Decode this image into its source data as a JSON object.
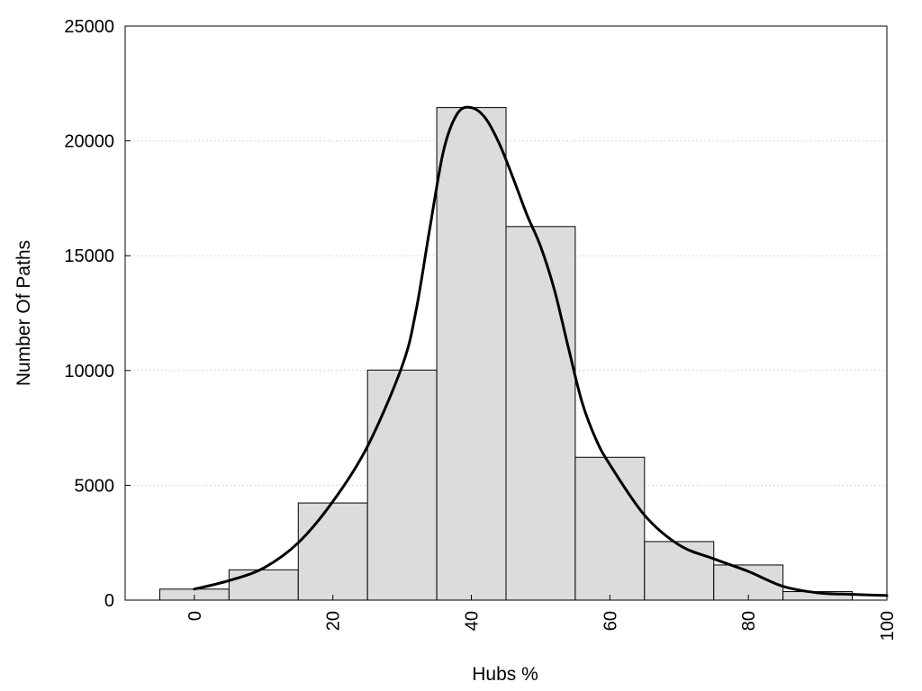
{
  "chart_data": {
    "type": "bar",
    "subtype": "histogram",
    "xlabel": "Hubs %",
    "ylabel": "Number Of Paths",
    "xlim": [
      -10,
      100
    ],
    "ylim": [
      0,
      25000
    ],
    "x_ticks": [
      "0",
      "20",
      "40",
      "60",
      "80",
      "100"
    ],
    "y_ticks": [
      "0",
      "5000",
      "10000",
      "15000",
      "20000",
      "25000"
    ],
    "grid": "horizontal-dotted",
    "legend": "none",
    "bar_color": "#dcdcdc",
    "line_color": "#000000",
    "bins": [
      {
        "x0": -5,
        "x1": 5,
        "value": 480
      },
      {
        "x0": 5,
        "x1": 15,
        "value": 1320
      },
      {
        "x0": 15,
        "x1": 25,
        "value": 4230
      },
      {
        "x0": 25,
        "x1": 35,
        "value": 10020
      },
      {
        "x0": 35,
        "x1": 45,
        "value": 21450
      },
      {
        "x0": 45,
        "x1": 55,
        "value": 16270
      },
      {
        "x0": 55,
        "x1": 65,
        "value": 6220
      },
      {
        "x0": 65,
        "x1": 75,
        "value": 2550
      },
      {
        "x0": 75,
        "x1": 85,
        "value": 1530
      },
      {
        "x0": 85,
        "x1": 95,
        "value": 370
      }
    ],
    "curve": {
      "x": [
        0,
        5,
        10,
        15,
        20,
        25,
        30,
        32,
        34,
        36,
        38,
        40,
        42,
        44,
        46,
        48,
        50,
        52,
        54,
        56,
        58,
        60,
        65,
        70,
        75,
        80,
        85,
        90,
        95,
        100
      ],
      "y": [
        480,
        850,
        1400,
        2500,
        4300,
        6700,
        10200,
        12600,
        16200,
        19600,
        21200,
        21450,
        21000,
        19900,
        18400,
        16800,
        15400,
        13500,
        11000,
        8600,
        7000,
        5900,
        3700,
        2400,
        1800,
        1250,
        600,
        320,
        250,
        200
      ]
    }
  }
}
